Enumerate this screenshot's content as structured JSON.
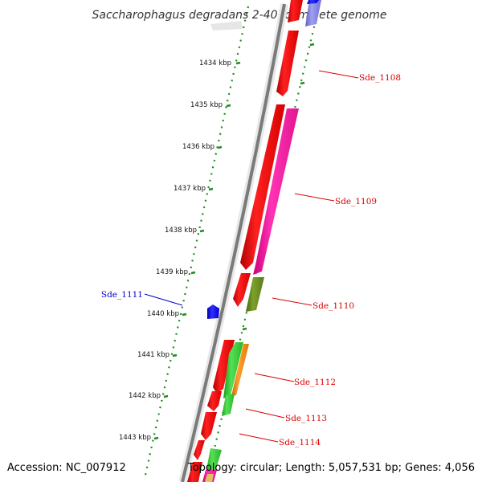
{
  "title": "Saccharophagus degradans 2-40, complete genome",
  "footer": {
    "accession": "Accession: NC_007912",
    "topology": "Topology: circular; Length: 5,057,531 bp; Genes: 4,056"
  },
  "colors": {
    "backbone": "#7a7a7a",
    "tick_dots": "#1e8c1e",
    "label_red": "#dd0000",
    "label_blue": "#0000cc",
    "gene_red": "#ff0000",
    "gene_magenta": "#ff1aaa",
    "gene_olive": "#6b8e23",
    "gene_green": "#33cc33",
    "gene_orange": "#ff8c00",
    "gene_blue": "#0000ff",
    "gene_lavender": "#8080e6"
  },
  "scale_ticks": [
    "1434 kbp",
    "1435 kbp",
    "1436 kbp",
    "1437 kbp",
    "1438 kbp",
    "1439 kbp",
    "1440 kbp",
    "1441 kbp",
    "1442 kbp",
    "1443 kbp"
  ],
  "gene_labels": [
    {
      "id": "Sde_1108",
      "color": "red"
    },
    {
      "id": "Sde_1109",
      "color": "red"
    },
    {
      "id": "Sde_1110",
      "color": "red"
    },
    {
      "id": "Sde_1111",
      "color": "blue"
    },
    {
      "id": "Sde_1112",
      "color": "red"
    },
    {
      "id": "Sde_1113",
      "color": "red"
    },
    {
      "id": "Sde_1114",
      "color": "red"
    }
  ]
}
